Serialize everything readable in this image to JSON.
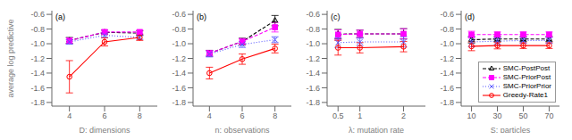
{
  "chart_data": [
    {
      "type": "line",
      "title": "(a)",
      "xlabel": "D: dimensions",
      "ylabel": "average log predictive",
      "x": [
        4,
        6,
        8
      ],
      "xlim": [
        3.0,
        9.0
      ],
      "xticks": [
        4,
        6,
        8
      ],
      "ylim": [
        -1.85,
        -0.55
      ],
      "yticks": [
        -1.8,
        -1.6,
        -1.4,
        -1.2,
        {
          "value": -1.0,
          "label": "-1.0"
        },
        -0.8,
        -0.6
      ],
      "grid": false,
      "series": [
        {
          "name": "SMC-PostPost",
          "color": "#000000",
          "marker": "triangle",
          "line_style": "dashed",
          "values": [
            -0.955,
            -0.845,
            -0.855
          ],
          "yerr": [
            0.04,
            0.03,
            0.03
          ]
        },
        {
          "name": "SMC-PriorPost",
          "color": "#ff00ff",
          "marker": "square",
          "line_style": "dashed",
          "values": [
            -0.96,
            -0.84,
            -0.84
          ],
          "yerr": [
            0.04,
            0.03,
            0.025
          ]
        },
        {
          "name": "SMC-PriorPrior",
          "color": "#5555ff",
          "marker": "x",
          "line_style": "dotted",
          "values": [
            -0.975,
            -0.885,
            -0.915
          ],
          "yerr": [
            0.03,
            0.03,
            0.025
          ]
        },
        {
          "name": "Greedy-Rate1",
          "color": "#ff0000",
          "marker": "circle",
          "line_style": "solid",
          "values": [
            -1.45,
            -0.975,
            -0.915
          ],
          "yerr": [
            0.22,
            0.055,
            0.04
          ]
        }
      ]
    },
    {
      "type": "line",
      "title": "(b)",
      "xlabel": "n: observations",
      "x": [
        4,
        6,
        8
      ],
      "xlim": [
        3.0,
        9.0
      ],
      "xticks": [
        4,
        6,
        8
      ],
      "ylim": [
        -1.85,
        -0.55
      ],
      "yticks": [
        -1.8,
        -1.6,
        -1.4,
        -1.2,
        {
          "value": -1.0,
          "label": "-1.0"
        },
        -0.8,
        -0.6
      ],
      "grid": false,
      "series": [
        {
          "name": "SMC-PostPost",
          "color": "#000000",
          "marker": "triangle",
          "line_style": "dashed",
          "values": [
            -1.13,
            -0.97,
            -0.685
          ],
          "yerr": [
            0.04,
            0.045,
            0.07
          ]
        },
        {
          "name": "SMC-PriorPost",
          "color": "#ff00ff",
          "marker": "square",
          "line_style": "dashed",
          "values": [
            -1.13,
            -0.97,
            -0.775
          ],
          "yerr": [
            0.04,
            0.04,
            0.065
          ]
        },
        {
          "name": "SMC-PriorPrior",
          "color": "#5555ff",
          "marker": "x",
          "line_style": "dotted",
          "values": [
            -1.14,
            -1.01,
            -0.945
          ],
          "yerr": [
            0.04,
            0.04,
            0.04
          ]
        },
        {
          "name": "Greedy-Rate1",
          "color": "#ff0000",
          "marker": "circle",
          "line_style": "solid",
          "values": [
            -1.4,
            -1.21,
            -1.065
          ],
          "yerr": [
            0.08,
            0.07,
            0.06
          ]
        }
      ]
    },
    {
      "type": "line",
      "title": "(c)",
      "xlabel": "λ: mutation rate",
      "x": [
        0.5,
        1,
        2
      ],
      "xlim": [
        0.25,
        2.5
      ],
      "xticks": [
        0.5,
        1,
        2
      ],
      "ylim": [
        -1.85,
        -0.55
      ],
      "yticks": [
        -1.8,
        -1.6,
        -1.4,
        -1.2,
        {
          "value": -1.0,
          "label": "-1.0"
        },
        -0.8,
        -0.6
      ],
      "grid": false,
      "series": [
        {
          "name": "SMC-PostPost",
          "color": "#000000",
          "marker": "triangle",
          "line_style": "dashed",
          "values": [
            -0.87,
            -0.865,
            -0.865
          ],
          "yerr": [
            0.065,
            0.05,
            0.07
          ]
        },
        {
          "name": "SMC-PriorPost",
          "color": "#ff00ff",
          "marker": "square",
          "line_style": "dashed",
          "values": [
            -0.875,
            -0.865,
            -0.865
          ],
          "yerr": [
            0.065,
            0.05,
            0.07
          ]
        },
        {
          "name": "SMC-PriorPrior",
          "color": "#5555ff",
          "marker": "x",
          "line_style": "dotted",
          "values": [
            -0.985,
            -0.975,
            -0.975
          ],
          "yerr": [
            0.065,
            0.05,
            0.07
          ]
        },
        {
          "name": "Greedy-Rate1",
          "color": "#ff0000",
          "marker": "circle",
          "line_style": "solid",
          "values": [
            -1.055,
            -1.055,
            -1.04
          ],
          "yerr": [
            0.1,
            0.07,
            0.07
          ]
        }
      ]
    },
    {
      "type": "line",
      "title": "(d)",
      "xlabel": "S: particles",
      "x": [
        10,
        30,
        50,
        70
      ],
      "xlim": [
        2.0,
        78.0
      ],
      "xticks": [
        10,
        30,
        50,
        70
      ],
      "ylim": [
        -1.85,
        -0.55
      ],
      "yticks": [
        -1.8,
        -1.6,
        -1.4,
        -1.2,
        {
          "value": -1.0,
          "label": "-1.0"
        },
        -0.8,
        -0.6
      ],
      "grid": false,
      "legend": "lower right",
      "series": [
        {
          "name": "SMC-PostPost",
          "color": "#000000",
          "marker": "triangle",
          "line_style": "dashed",
          "values": [
            -0.945,
            -0.935,
            -0.935,
            -0.935
          ],
          "yerr": [
            0.045,
            0.035,
            0.035,
            0.035
          ]
        },
        {
          "name": "SMC-PriorPost",
          "color": "#ff00ff",
          "marker": "square",
          "line_style": "dashed",
          "values": [
            -0.875,
            -0.875,
            -0.875,
            -0.875
          ],
          "yerr": [
            0.045,
            0.035,
            0.035,
            0.035
          ]
        },
        {
          "name": "SMC-PriorPrior",
          "color": "#5555ff",
          "marker": "x",
          "line_style": "dotted",
          "values": [
            -0.975,
            -0.965,
            -0.955,
            -0.955
          ],
          "yerr": [
            0.065,
            0.045,
            0.04,
            0.04
          ]
        },
        {
          "name": "Greedy-Rate1",
          "color": "#ff0000",
          "marker": "circle",
          "line_style": "solid",
          "values": [
            -1.035,
            -1.025,
            -1.025,
            -1.025
          ],
          "yerr": [
            0.06,
            0.045,
            0.04,
            0.04
          ]
        }
      ]
    }
  ]
}
